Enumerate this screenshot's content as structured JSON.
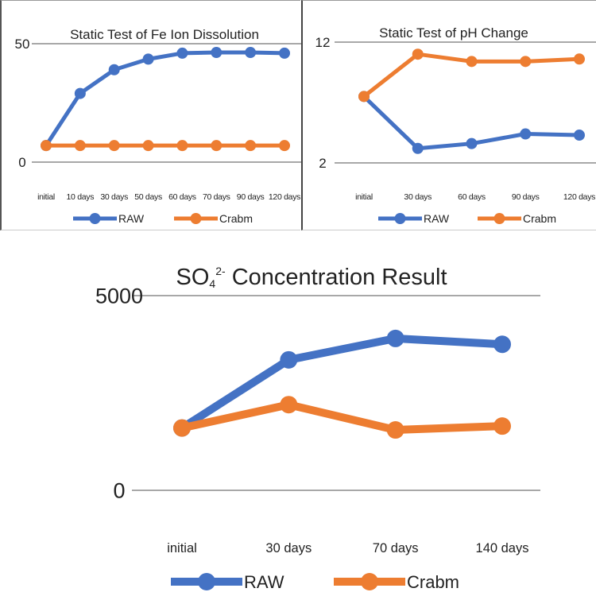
{
  "colors": {
    "raw": "#4472C4",
    "crabm": "#ED7D31",
    "grid": "#8c8c8c"
  },
  "chart_data": [
    {
      "id": "fe",
      "type": "line",
      "title": "Static Test of Fe Ion Dissolution",
      "xlabel": "",
      "ylabel": "",
      "ylim": [
        0,
        50
      ],
      "yticks": [
        "0",
        "50"
      ],
      "categories": [
        "initial",
        "10 days",
        "30 days",
        "50 days",
        "60 days",
        "70 days",
        "90 days",
        "120 days"
      ],
      "series": [
        {
          "name": "RAW",
          "values": [
            7,
            29,
            39,
            43.5,
            46,
            46.3,
            46.3,
            46
          ]
        },
        {
          "name": "Crabm",
          "values": [
            7,
            7,
            7,
            7,
            7,
            7,
            7,
            7
          ]
        }
      ],
      "grid": true,
      "legend": "bottom"
    },
    {
      "id": "ph",
      "type": "line",
      "title": "Static Test of pH Change",
      "xlabel": "",
      "ylabel": "",
      "ylim": [
        2,
        12
      ],
      "yticks": [
        "2",
        "12"
      ],
      "categories": [
        "initial",
        "30 days",
        "60 days",
        "90 days",
        "120 days"
      ],
      "series": [
        {
          "name": "RAW",
          "values": [
            7.5,
            3.2,
            3.6,
            4.4,
            4.3
          ]
        },
        {
          "name": "Crabm",
          "values": [
            7.5,
            11.0,
            10.4,
            10.4,
            10.6
          ]
        }
      ],
      "grid": true,
      "legend": "bottom"
    },
    {
      "id": "so4",
      "type": "line",
      "title": "SO",
      "title_sub": "4",
      "title_sup": "2-",
      "title_rest": " Concentration Result",
      "xlabel": "",
      "ylabel": "",
      "ylim": [
        0,
        5000
      ],
      "yticks": [
        "0",
        "5000"
      ],
      "categories": [
        "initial",
        "30 days",
        "70 days",
        "140 days"
      ],
      "series": [
        {
          "name": "RAW",
          "values": [
            1600,
            3350,
            3900,
            3750
          ]
        },
        {
          "name": "Crabm",
          "values": [
            1600,
            2200,
            1550,
            1650
          ]
        }
      ],
      "grid": true,
      "legend": "bottom"
    }
  ]
}
